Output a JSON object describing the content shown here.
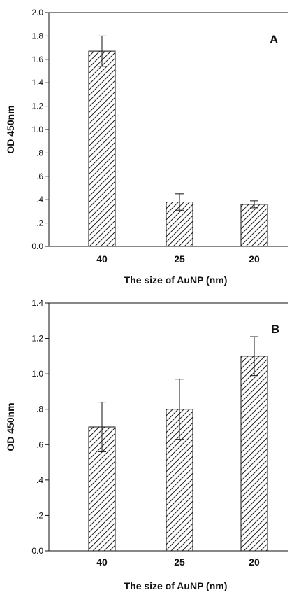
{
  "chart_data": [
    {
      "type": "bar",
      "panel_label": "A",
      "categories": [
        "40",
        "25",
        "20"
      ],
      "values": [
        1.67,
        0.38,
        0.36
      ],
      "errors": [
        0.13,
        0.07,
        0.03
      ],
      "ylabel": "OD 450nm",
      "xlabel": "The size of AuNP (nm)",
      "ylim": [
        0,
        2.0
      ],
      "yticks": [
        0,
        0.2,
        0.4,
        0.6,
        0.8,
        1.0,
        1.2,
        1.4,
        1.6,
        1.8,
        2.0
      ],
      "ytick_labels": [
        "0.0",
        ".2",
        ".4",
        ".6",
        ".8",
        "1.0",
        "1.2",
        "1.4",
        "1.6",
        "1.8",
        "2.0"
      ],
      "bar_pattern": "diagonal-hatch",
      "grid": false
    },
    {
      "type": "bar",
      "panel_label": "B",
      "categories": [
        "40",
        "25",
        "20"
      ],
      "values": [
        0.7,
        0.8,
        1.1
      ],
      "errors": [
        0.14,
        0.17,
        0.11
      ],
      "ylabel": "OD 450nm",
      "xlabel": "The size of AuNP  (nm)",
      "ylim": [
        0,
        1.4
      ],
      "yticks": [
        0,
        0.2,
        0.4,
        0.6,
        0.8,
        1.0,
        1.2,
        1.4
      ],
      "ytick_labels": [
        "0.0",
        ".2",
        ".4",
        ".6",
        ".8",
        "1.0",
        "1.2",
        "1.4"
      ],
      "bar_pattern": "diagonal-hatch",
      "grid": false
    }
  ]
}
